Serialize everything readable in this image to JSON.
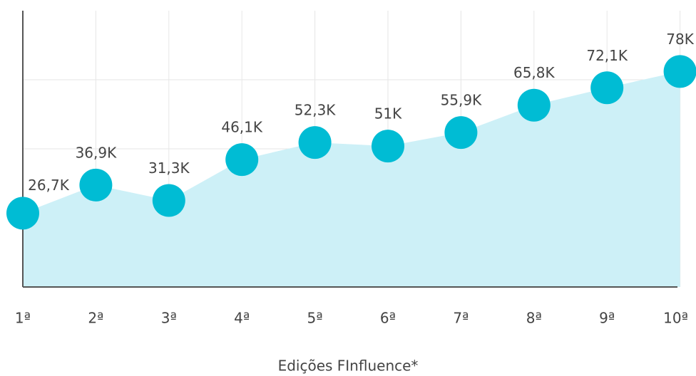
{
  "chart_data": {
    "type": "area",
    "x_label": "Edições FInfluence*",
    "categories": [
      "1ª",
      "2ª",
      "3ª",
      "4ª",
      "5ª",
      "6ª",
      "7ª",
      "8ª",
      "9ª",
      "10ª"
    ],
    "values": [
      26.7,
      36.9,
      31.3,
      46.1,
      52.3,
      51,
      55.9,
      65.8,
      72.1,
      78
    ],
    "value_labels": [
      "26,7K",
      "36,9K",
      "31,3K",
      "46,1K",
      "52,3K",
      "51K",
      "55,9K",
      "65,8K",
      "72,1K",
      "78K"
    ],
    "color": "#00bcd4",
    "area_color": "#cdf0f7",
    "ylim": [
      0,
      100
    ],
    "yticks": [
      25,
      50,
      75
    ],
    "grid": true
  }
}
